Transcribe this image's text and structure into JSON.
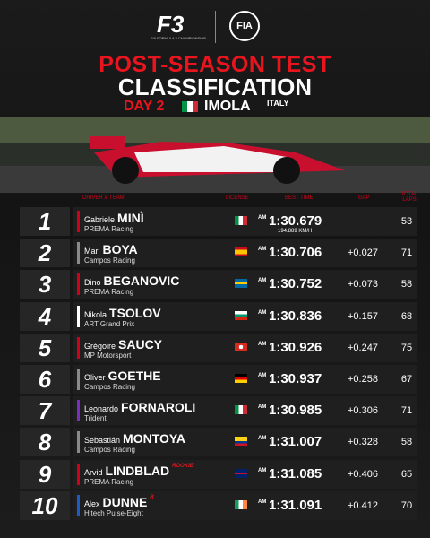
{
  "header": {
    "logo_text": "FIA FORMULA 3 CHAMPIONSHIP",
    "logo_mark": "F3",
    "fia": "FIA"
  },
  "title": {
    "line1": "POST-SEASON TEST",
    "line2": "CLASSIFICATION",
    "day": "DAY 2",
    "venue": "IMOLA",
    "country": "ITALY"
  },
  "columns": {
    "driver": "DRIVER & TEAM",
    "license": "LICENSE",
    "best_time": "BEST TIME",
    "gap": "GAP",
    "laps": "TOTAL LAPS"
  },
  "rows": [
    {
      "position": 1,
      "first": "Gabriele",
      "last": "MINÌ",
      "team": "PREMA Racing",
      "license": "AM",
      "time": "1:30.679",
      "speed": "194.889 KM/H",
      "laps": 53
    },
    {
      "position": 2,
      "first": "Mari",
      "last": "BOYA",
      "team": "Campos Racing",
      "license": "AM",
      "time": "1:30.706",
      "gap": "+0.027",
      "laps": 71
    },
    {
      "position": 3,
      "first": "Dino",
      "last": "BEGANOVIC",
      "team": "PREMA Racing",
      "license": "AM",
      "time": "1:30.752",
      "gap": "+0.073",
      "laps": 58
    },
    {
      "position": 4,
      "first": "Nikola",
      "last": "TSOLOV",
      "team": "ART Grand Prix",
      "license": "AM",
      "time": "1:30.836",
      "gap": "+0.157",
      "laps": 68
    },
    {
      "position": 5,
      "first": "Grégoire",
      "last": "SAUCY",
      "team": "MP Motorsport",
      "license": "AM",
      "time": "1:30.926",
      "gap": "+0.247",
      "laps": 75
    },
    {
      "position": 6,
      "first": "Oliver",
      "last": "GOETHE",
      "team": "Campos Racing",
      "license": "AM",
      "time": "1:30.937",
      "gap": "+0.258",
      "laps": 67
    },
    {
      "position": 7,
      "first": "Leonardo",
      "last": "FORNAROLI",
      "team": "Trident",
      "license": "AM",
      "time": "1:30.985",
      "gap": "+0.306",
      "laps": 71
    },
    {
      "position": 8,
      "first": "Sebastián",
      "last": "MONTOYA",
      "team": "Campos Racing",
      "license": "AM",
      "time": "1:31.007",
      "gap": "+0.328",
      "laps": 58
    },
    {
      "position": 9,
      "first": "Arvid",
      "last": "LINDBLAD",
      "tag": "ROOKIE",
      "team": "PREMA Racing",
      "license": "AM",
      "time": "1:31.085",
      "gap": "+0.406",
      "laps": 65
    },
    {
      "position": 10,
      "first": "Alex",
      "last": "DUNNE",
      "tag": "R",
      "team": "Hitech Pulse-Eight",
      "license": "AM",
      "time": "1:31.091",
      "gap": "+0.412",
      "laps": 70
    }
  ]
}
